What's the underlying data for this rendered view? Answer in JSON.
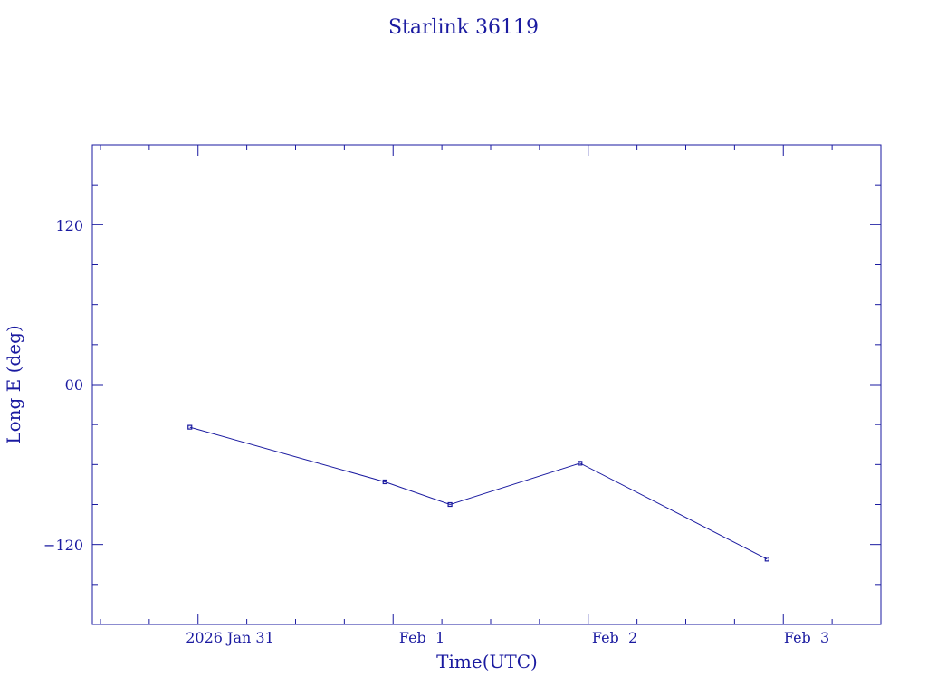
{
  "chart_data": {
    "type": "line",
    "title": "Starlink 36119",
    "xlabel": "Time(UTC)",
    "ylabel": "Long E (deg)",
    "x_tick_labels": [
      "2026 Jan 31",
      "Feb  1",
      "Feb  2",
      "Feb  3"
    ],
    "y_tick_labels": [
      "120",
      "00",
      "−120"
    ],
    "y_ticks": [
      120,
      0,
      -120
    ],
    "ylim": [
      -180,
      180
    ],
    "xlim": [
      "2026-01-30T11:00",
      "2026-02-03T12:00"
    ],
    "grid": false,
    "series": [
      {
        "x": [
          "2026-01-30T23:00",
          "2026-01-31T23:00",
          "2026-02-01T07:00",
          "2026-02-01T23:00",
          "2026-02-02T22:00"
        ],
        "y": [
          -32,
          -73,
          -90,
          -59,
          -131
        ]
      }
    ],
    "color": "#1a1aa0"
  }
}
